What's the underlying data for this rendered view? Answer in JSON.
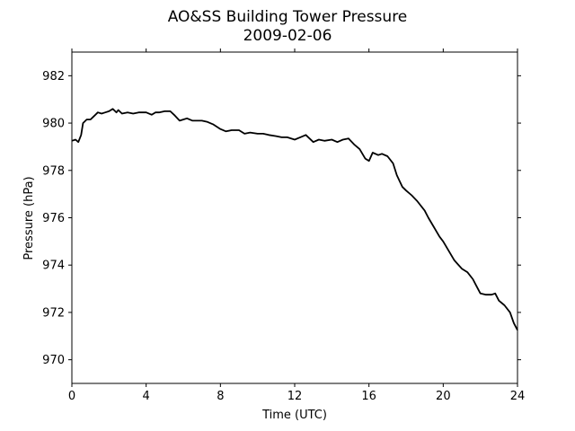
{
  "chart_data": {
    "type": "line",
    "title": "AO&SS Building Tower Pressure",
    "subtitle": "2009-02-06",
    "xlabel": "Time (UTC)",
    "ylabel": "Pressure (hPa)",
    "xlim": [
      0,
      24
    ],
    "ylim": [
      969,
      983
    ],
    "xticks": [
      0,
      4,
      8,
      12,
      16,
      20,
      24
    ],
    "yticks": [
      970,
      972,
      974,
      976,
      978,
      980,
      982
    ],
    "grid": false,
    "line_color": "#000000",
    "series": [
      {
        "x": [
          0,
          0.2,
          0.35,
          0.5,
          0.6,
          0.8,
          1.0,
          1.2,
          1.4,
          1.6,
          1.8,
          2.0,
          2.2,
          2.4,
          2.5,
          2.7,
          3.0,
          3.3,
          3.6,
          4.0,
          4.3,
          4.5,
          4.7,
          5.0,
          5.3,
          5.5,
          5.8,
          6.0,
          6.2,
          6.5,
          6.8,
          7.0,
          7.3,
          7.6,
          8.0,
          8.3,
          8.6,
          9.0,
          9.3,
          9.6,
          10.0,
          10.3,
          10.6,
          11.0,
          11.3,
          11.6,
          12.0,
          12.3,
          12.6,
          13.0,
          13.3,
          13.6,
          14.0,
          14.3,
          14.6,
          14.9,
          15.2,
          15.5,
          15.8,
          16.0,
          16.2,
          16.5,
          16.7,
          17.0,
          17.3,
          17.5,
          17.8,
          18.0,
          18.3,
          18.6,
          19.0,
          19.2,
          19.5,
          19.8,
          20.0,
          20.3,
          20.6,
          21.0,
          21.3,
          21.6,
          21.8,
          22.0,
          22.3,
          22.6,
          22.8,
          23.0,
          23.3,
          23.6,
          23.8,
          24.0
        ],
        "y": [
          979.25,
          979.3,
          979.2,
          979.5,
          980.0,
          980.15,
          980.15,
          980.3,
          980.45,
          980.4,
          980.45,
          980.5,
          980.6,
          980.45,
          980.55,
          980.4,
          980.45,
          980.4,
          980.45,
          980.45,
          980.35,
          980.45,
          980.45,
          980.5,
          980.5,
          980.35,
          980.1,
          980.15,
          980.2,
          980.1,
          980.1,
          980.1,
          980.05,
          979.95,
          979.75,
          979.65,
          979.7,
          979.7,
          979.55,
          979.6,
          979.55,
          979.55,
          979.5,
          979.45,
          979.4,
          979.4,
          979.3,
          979.4,
          979.5,
          979.2,
          979.3,
          979.25,
          979.3,
          979.2,
          979.3,
          979.35,
          979.1,
          978.9,
          978.5,
          978.4,
          978.75,
          978.65,
          978.7,
          978.6,
          978.3,
          977.8,
          977.3,
          977.15,
          976.95,
          976.7,
          976.3,
          976.0,
          975.6,
          975.2,
          975.0,
          974.6,
          974.2,
          973.85,
          973.7,
          973.4,
          973.1,
          972.8,
          972.75,
          972.75,
          972.8,
          972.5,
          972.3,
          972.0,
          971.55,
          971.25
        ]
      }
    ]
  }
}
